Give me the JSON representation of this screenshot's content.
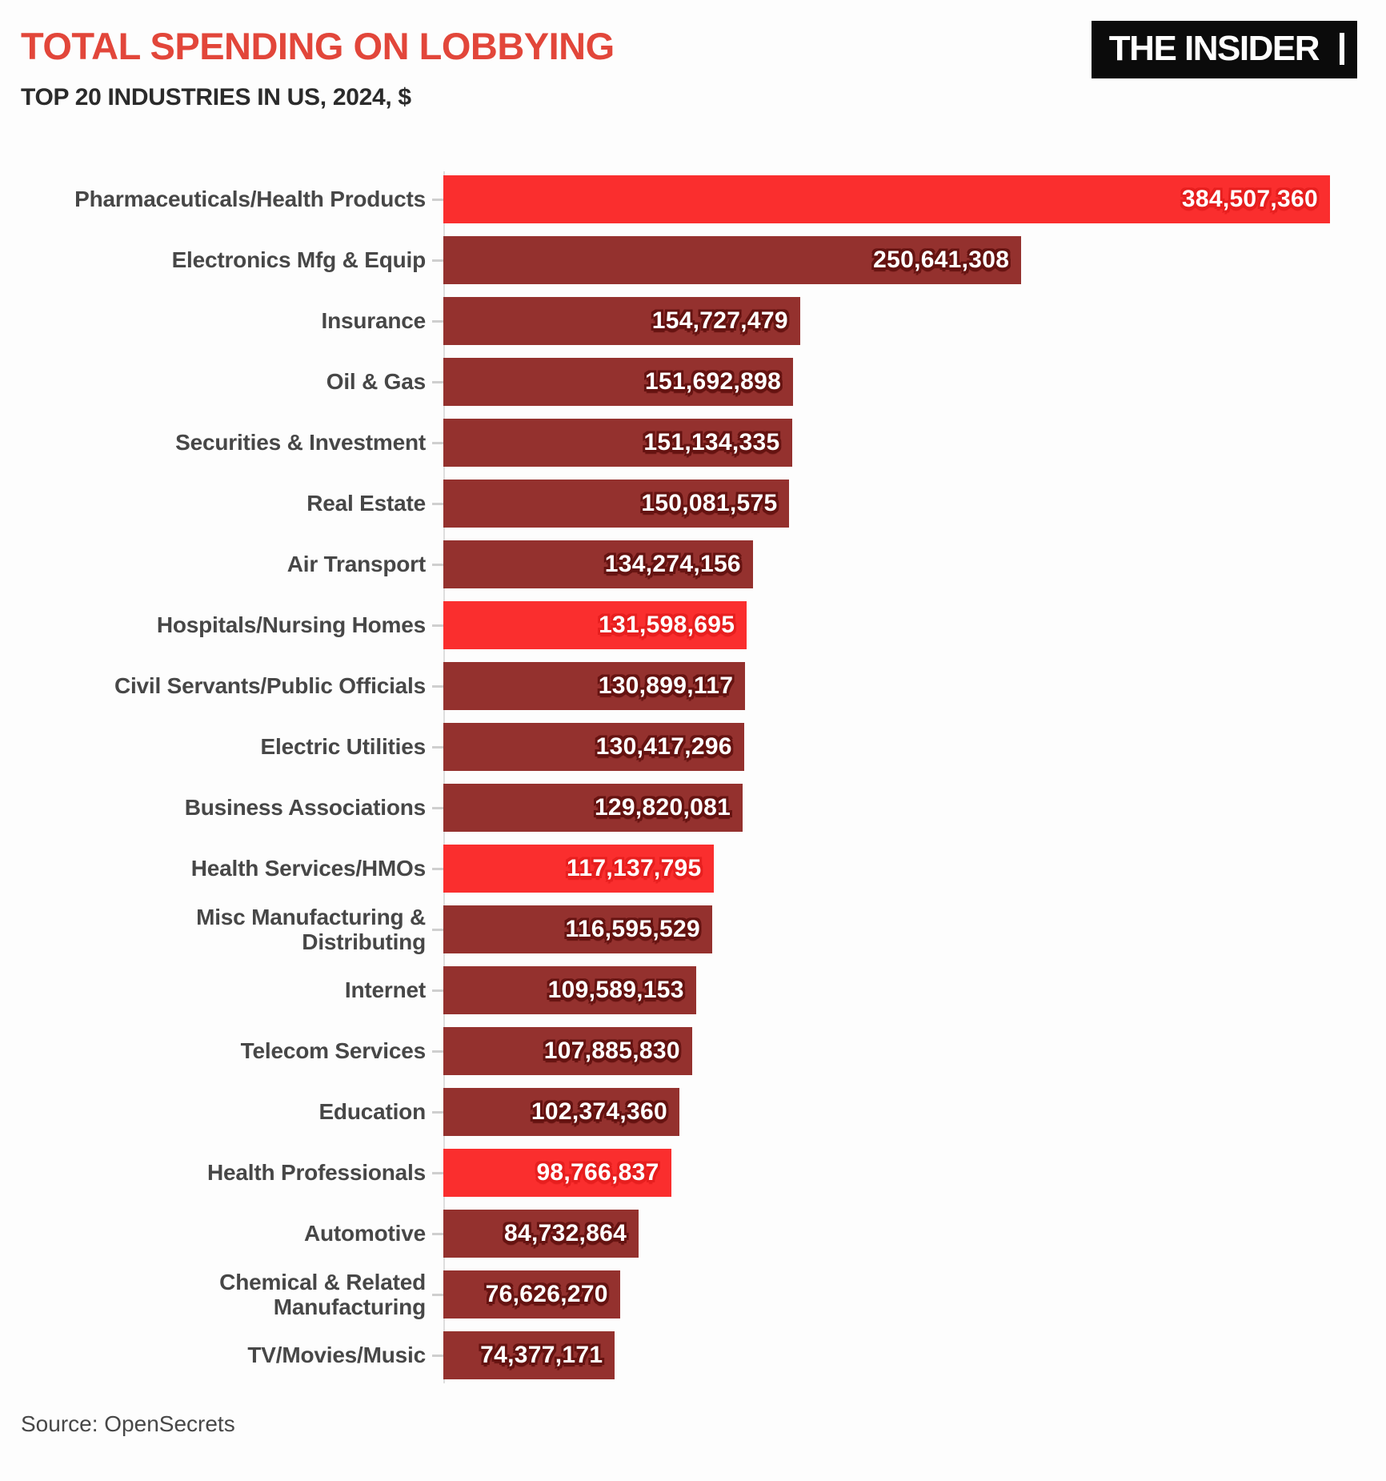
{
  "header": {
    "title": "TOTAL SPENDING ON LOBBYING",
    "subtitle": "TOP 20 INDUSTRIES IN US, 2024, $",
    "logo": "THE INSIDER"
  },
  "footer": {
    "source": "Source: OpenSecrets"
  },
  "colors": {
    "title": "#E2463A",
    "bar_default": "#94312E",
    "bar_highlight": "#FA2E2E",
    "value_text": "#FFFFFF",
    "category_text": "#474747",
    "logo_background": "#0B0B0B"
  },
  "chart_data": {
    "type": "bar",
    "orientation": "horizontal",
    "title": "TOTAL SPENDING ON LOBBYING",
    "subtitle": "TOP 20 INDUSTRIES IN US, 2024, $",
    "source": "Source: OpenSecrets",
    "unit": "$",
    "grid": false,
    "legend": "none",
    "value_label_position": "inside-end",
    "max_value": 384507360,
    "categories": [
      "Pharmaceuticals/Health Products",
      "Electronics Mfg & Equip",
      "Insurance",
      "Oil & Gas",
      "Securities & Investment",
      "Real Estate",
      "Air Transport",
      "Hospitals/Nursing Homes",
      "Civil Servants/Public Officials",
      "Electric Utilities",
      "Business Associations",
      "Health Services/HMOs",
      "Misc Manufacturing &\nDistributing",
      "Internet",
      "Telecom Services",
      "Education",
      "Health Professionals",
      "Automotive",
      "Chemical & Related\nManufacturing",
      "TV/Movies/Music"
    ],
    "values": [
      384507360,
      250641308,
      154727479,
      151692898,
      151134335,
      150081575,
      134274156,
      131598695,
      130899117,
      130417296,
      129820081,
      117137795,
      116595529,
      109589153,
      107885830,
      102374360,
      98766837,
      84732864,
      76626270,
      74377171
    ],
    "value_labels": [
      "384,507,360",
      "250,641,308",
      "154,727,479",
      "151,692,898",
      "151,134,335",
      "150,081,575",
      "134,274,156",
      "131,598,695",
      "130,899,117",
      "130,417,296",
      "129,820,081",
      "117,137,795",
      "116,595,529",
      "109,589,153",
      "107,885,830",
      "102,374,360",
      "98,766,837",
      "84,732,864",
      "76,626,270",
      "74,377,171"
    ],
    "highlighted": [
      true,
      false,
      false,
      false,
      false,
      false,
      false,
      true,
      false,
      false,
      false,
      true,
      false,
      false,
      false,
      false,
      true,
      false,
      false,
      false
    ]
  }
}
